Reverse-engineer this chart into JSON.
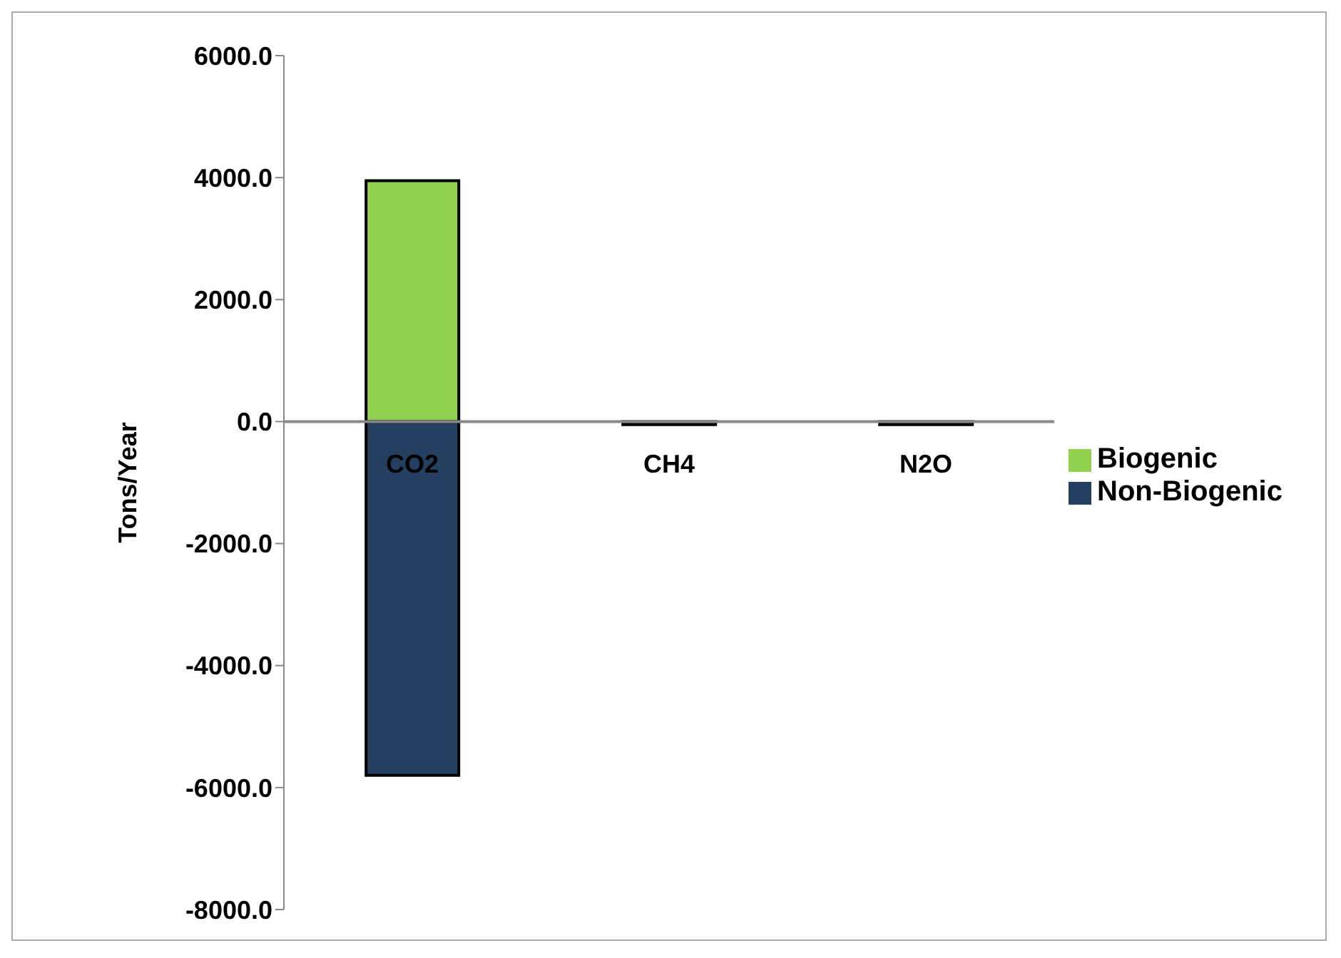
{
  "chart_data": {
    "type": "bar",
    "stacked": true,
    "ylabel": "Tons/Year",
    "categories": [
      "CO2",
      "CH4",
      "N2O"
    ],
    "series": [
      {
        "name": "Biogenic",
        "color": "#92d050",
        "values": [
          3950,
          null,
          null
        ]
      },
      {
        "name": "Non-Biogenic",
        "color": "#243f60",
        "values": [
          -5800,
          -50,
          -50
        ]
      }
    ],
    "ylim": [
      -8000,
      6000
    ],
    "yticks": [
      {
        "value": -8000,
        "label": "-8000.0"
      },
      {
        "value": -6000,
        "label": "-6000.0"
      },
      {
        "value": -4000,
        "label": "-4000.0"
      },
      {
        "value": -2000,
        "label": "-2000.0"
      },
      {
        "value": 0,
        "label": "0.0"
      },
      {
        "value": 2000,
        "label": "2000.0"
      },
      {
        "value": 4000,
        "label": "4000.0"
      },
      {
        "value": 6000,
        "label": "6000.0"
      }
    ],
    "grid": false,
    "legend": "right"
  }
}
